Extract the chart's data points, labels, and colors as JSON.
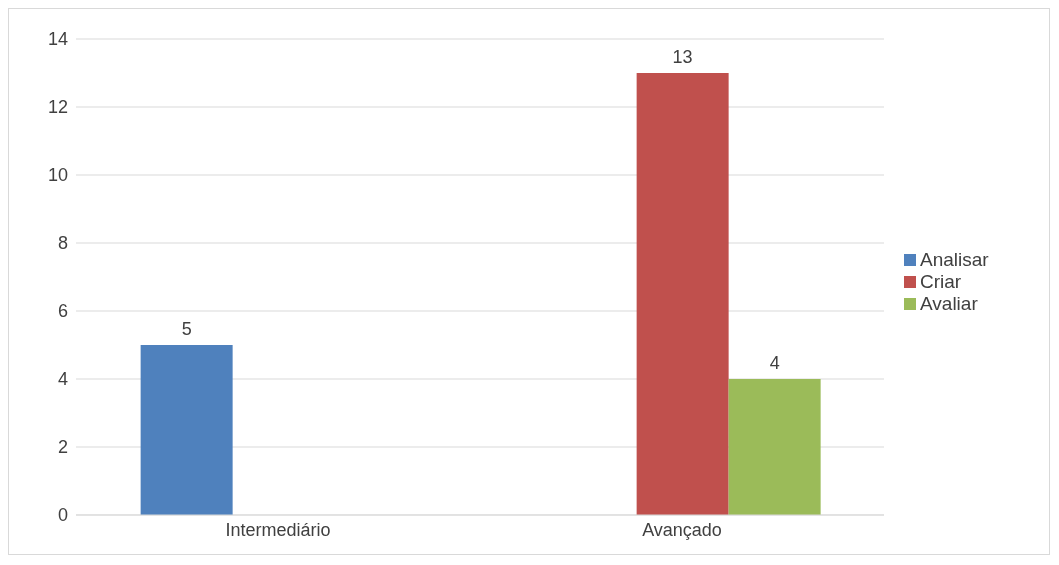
{
  "chart_data": {
    "type": "bar",
    "categories": [
      "Intermediário",
      "Avançado"
    ],
    "series": [
      {
        "name": "Analisar",
        "color": "#4f81bd",
        "values": [
          5,
          null
        ]
      },
      {
        "name": "Criar",
        "color": "#c0504d",
        "values": [
          null,
          13
        ]
      },
      {
        "name": "Avaliar",
        "color": "#9bbb59",
        "values": [
          null,
          4
        ]
      }
    ],
    "ylim": [
      0,
      14
    ],
    "yticks": [
      0,
      2,
      4,
      6,
      8,
      10,
      12,
      14
    ],
    "grid": "y",
    "legend": "right",
    "data_labels": true
  }
}
